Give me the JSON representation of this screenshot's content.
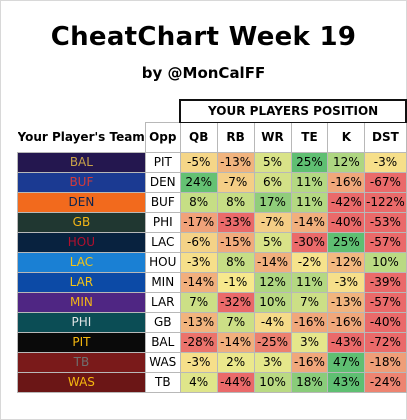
{
  "title": "CheatChart Week 19",
  "subtitle": "by @MonCalFF",
  "chart_data": {
    "type": "heatmap",
    "banner": "YOUR PLAYERS POSITION",
    "row_header": "Your Player's Team",
    "opp_header": "Opp",
    "positions": [
      "QB",
      "RB",
      "WR",
      "TE",
      "K",
      "DST"
    ],
    "rows": [
      {
        "team": "BAL",
        "opp": "PIT",
        "team_bg": "#24174f",
        "team_fg": "#c7a34a",
        "values": [
          -5,
          -13,
          5,
          25,
          12,
          -3
        ]
      },
      {
        "team": "BUF",
        "opp": "DEN",
        "team_bg": "#1b3a92",
        "team_fg": "#d33a3a",
        "values": [
          24,
          -7,
          6,
          11,
          -16,
          -67
        ]
      },
      {
        "team": "DEN",
        "opp": "BUF",
        "team_bg": "#f26a1d",
        "team_fg": "#0b2350",
        "values": [
          8,
          8,
          17,
          11,
          -42,
          -122
        ]
      },
      {
        "team": "GB",
        "opp": "PHI",
        "team_bg": "#203731",
        "team_fg": "#f2b517",
        "values": [
          -17,
          -33,
          -7,
          -14,
          -40,
          -53
        ]
      },
      {
        "team": "HOU",
        "opp": "LAC",
        "team_bg": "#08223f",
        "team_fg": "#b2102e",
        "values": [
          -6,
          -15,
          5,
          -30,
          25,
          -57
        ]
      },
      {
        "team": "LAC",
        "opp": "HOU",
        "team_bg": "#1a80d4",
        "team_fg": "#f5c414",
        "values": [
          -3,
          8,
          -14,
          -2,
          -12,
          10
        ]
      },
      {
        "team": "LAR",
        "opp": "MIN",
        "team_bg": "#0c4aa6",
        "team_fg": "#f5c414",
        "values": [
          -14,
          -1,
          12,
          11,
          -3,
          -39
        ]
      },
      {
        "team": "MIN",
        "opp": "LAR",
        "team_bg": "#4f2683",
        "team_fg": "#f2b517",
        "values": [
          7,
          -32,
          10,
          7,
          -13,
          -57
        ]
      },
      {
        "team": "PHI",
        "opp": "GB",
        "team_bg": "#0b4d55",
        "team_fg": "#dfe3e4",
        "values": [
          -13,
          7,
          -4,
          -16,
          -16,
          -40
        ]
      },
      {
        "team": "PIT",
        "opp": "BAL",
        "team_bg": "#0a0a0a",
        "team_fg": "#f5b80f",
        "values": [
          -28,
          -14,
          -25,
          3,
          -43,
          -72
        ]
      },
      {
        "team": "TB",
        "opp": "WAS",
        "team_bg": "#7a1a1a",
        "team_fg": "#6f6f6f",
        "values": [
          -3,
          2,
          3,
          -16,
          47,
          -18
        ]
      },
      {
        "team": "WAS",
        "opp": "TB",
        "team_bg": "#6b1616",
        "team_fg": "#f5b80f",
        "values": [
          4,
          -44,
          10,
          18,
          43,
          -24
        ]
      }
    ],
    "value_suffix": "%",
    "colors": {
      "negative": "#ea6a6a",
      "neutral": "#f7ec8e",
      "positive": "#5fbf72"
    }
  }
}
